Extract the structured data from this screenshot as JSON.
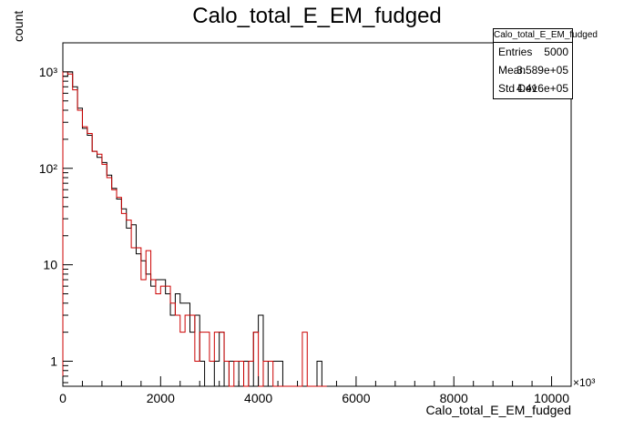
{
  "title": "Calo_total_E_EM_fudged",
  "stats": {
    "name": "Calo_total_E_EM_fudged",
    "rows": [
      {
        "label": "Entries",
        "value": "5000"
      },
      {
        "label": "Mean",
        "value": "3.589e+05"
      },
      {
        "label": "Std Dev",
        "value": "4.416e+05"
      }
    ]
  },
  "xlabel": "Calo_total_E_EM_fudged",
  "ylabel": "count",
  "x_multiplier": "×10³",
  "chart_data": {
    "type": "histogram",
    "title": "Calo_total_E_EM_fudged",
    "xlabel": "Calo_total_E_EM_fudged",
    "ylabel": "count",
    "x_unit_multiplier": 1000,
    "xlim": [
      0,
      10400
    ],
    "ylim": [
      0.55,
      2000
    ],
    "yscale": "log",
    "x_ticks": [
      0,
      2000,
      4000,
      6000,
      8000,
      10000
    ],
    "x_tick_labels": [
      "0",
      "2000",
      "4000",
      "6000",
      "8000",
      "10000"
    ],
    "y_ticks": [
      1,
      10,
      100,
      1000
    ],
    "y_tick_labels": [
      "1",
      "10",
      "10²",
      "10³"
    ],
    "bin_width": 100,
    "series": [
      {
        "color": "#000000",
        "bins": [
          [
            0,
            900
          ],
          [
            100,
            1000
          ],
          [
            200,
            700
          ],
          [
            300,
            420
          ],
          [
            400,
            260
          ],
          [
            500,
            220
          ],
          [
            600,
            150
          ],
          [
            700,
            130
          ],
          [
            800,
            115
          ],
          [
            900,
            85
          ],
          [
            1000,
            62
          ],
          [
            1100,
            48
          ],
          [
            1200,
            38
          ],
          [
            1300,
            24
          ],
          [
            1400,
            26
          ],
          [
            1500,
            13
          ],
          [
            1600,
            11
          ],
          [
            1700,
            8
          ],
          [
            1800,
            6
          ],
          [
            1900,
            7
          ],
          [
            2000,
            7
          ],
          [
            2100,
            5
          ],
          [
            2200,
            3
          ],
          [
            2300,
            5
          ],
          [
            2400,
            4
          ],
          [
            2500,
            4
          ],
          [
            2600,
            2
          ],
          [
            2700,
            3
          ],
          [
            2800,
            1
          ],
          [
            2900,
            0
          ],
          [
            3000,
            0
          ],
          [
            3100,
            1
          ],
          [
            3200,
            2
          ],
          [
            3300,
            0
          ],
          [
            3400,
            1
          ],
          [
            3500,
            1
          ],
          [
            3600,
            0
          ],
          [
            3700,
            1
          ],
          [
            3800,
            0
          ],
          [
            3900,
            2
          ],
          [
            4000,
            3
          ],
          [
            4100,
            0
          ],
          [
            4200,
            1
          ],
          [
            4300,
            1
          ],
          [
            4400,
            1
          ],
          [
            4500,
            0
          ],
          [
            4600,
            0
          ],
          [
            4700,
            0
          ],
          [
            4800,
            0
          ],
          [
            4900,
            0
          ],
          [
            5000,
            0
          ],
          [
            5100,
            0
          ],
          [
            5200,
            1
          ],
          [
            5300,
            0
          ]
        ]
      },
      {
        "color": "#cc0000",
        "bins": [
          [
            0,
            1000
          ],
          [
            100,
            950
          ],
          [
            200,
            650
          ],
          [
            300,
            400
          ],
          [
            400,
            270
          ],
          [
            500,
            230
          ],
          [
            600,
            150
          ],
          [
            700,
            140
          ],
          [
            800,
            110
          ],
          [
            900,
            80
          ],
          [
            1000,
            60
          ],
          [
            1100,
            50
          ],
          [
            1200,
            34
          ],
          [
            1300,
            29
          ],
          [
            1400,
            15
          ],
          [
            1500,
            15
          ],
          [
            1600,
            7
          ],
          [
            1700,
            14
          ],
          [
            1800,
            7
          ],
          [
            1900,
            5
          ],
          [
            2000,
            6
          ],
          [
            2100,
            6
          ],
          [
            2200,
            4
          ],
          [
            2300,
            3
          ],
          [
            2400,
            2
          ],
          [
            2500,
            3
          ],
          [
            2600,
            3
          ],
          [
            2700,
            1
          ],
          [
            2800,
            2
          ],
          [
            2900,
            2
          ],
          [
            3000,
            1
          ],
          [
            3100,
            2
          ],
          [
            3200,
            2
          ],
          [
            3300,
            1
          ],
          [
            3400,
            0
          ],
          [
            3500,
            1
          ],
          [
            3600,
            1
          ],
          [
            3700,
            0
          ],
          [
            3800,
            1
          ],
          [
            3900,
            2
          ],
          [
            4000,
            0
          ],
          [
            4100,
            1
          ],
          [
            4200,
            1
          ],
          [
            4300,
            0
          ],
          [
            4400,
            0
          ],
          [
            4500,
            0
          ],
          [
            4600,
            0
          ],
          [
            4700,
            0
          ],
          [
            4800,
            0
          ],
          [
            4900,
            2
          ],
          [
            5000,
            0
          ],
          [
            5100,
            0
          ],
          [
            5200,
            0
          ],
          [
            5300,
            0
          ]
        ]
      }
    ]
  }
}
